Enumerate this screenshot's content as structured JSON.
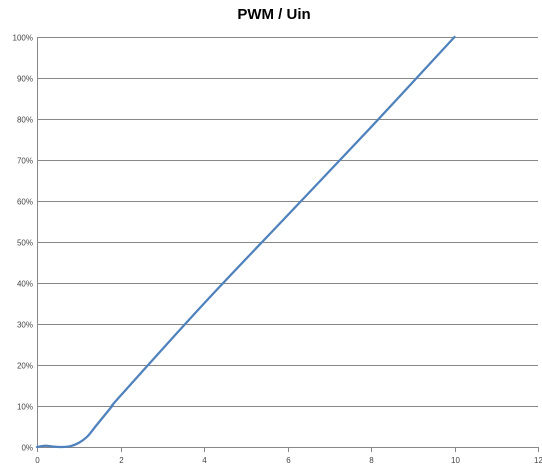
{
  "chart_data": {
    "type": "line",
    "title": "PWM / Uin",
    "xlabel": "",
    "ylabel": "",
    "xlim": [
      0,
      12
    ],
    "ylim": [
      0,
      100
    ],
    "x_ticks": [
      0,
      2,
      4,
      6,
      8,
      10,
      12
    ],
    "y_ticks": [
      0,
      10,
      20,
      30,
      40,
      50,
      60,
      70,
      80,
      90,
      100
    ],
    "y_tick_format": "percent",
    "grid": "horizontal",
    "legend": "none",
    "series": [
      {
        "color": "#4f81bd",
        "x": [
          0,
          0.2,
          0.4,
          0.6,
          0.8,
          1.0,
          1.2,
          1.4,
          1.6,
          1.8,
          2.0,
          4.0,
          6.0,
          8.0,
          10.0
        ],
        "y": [
          0,
          0.3,
          0.1,
          0,
          0.2,
          1.0,
          2.5,
          5.0,
          7.5,
          10.0,
          12.5,
          35.0,
          56.5,
          78.0,
          100.0
        ]
      }
    ]
  }
}
